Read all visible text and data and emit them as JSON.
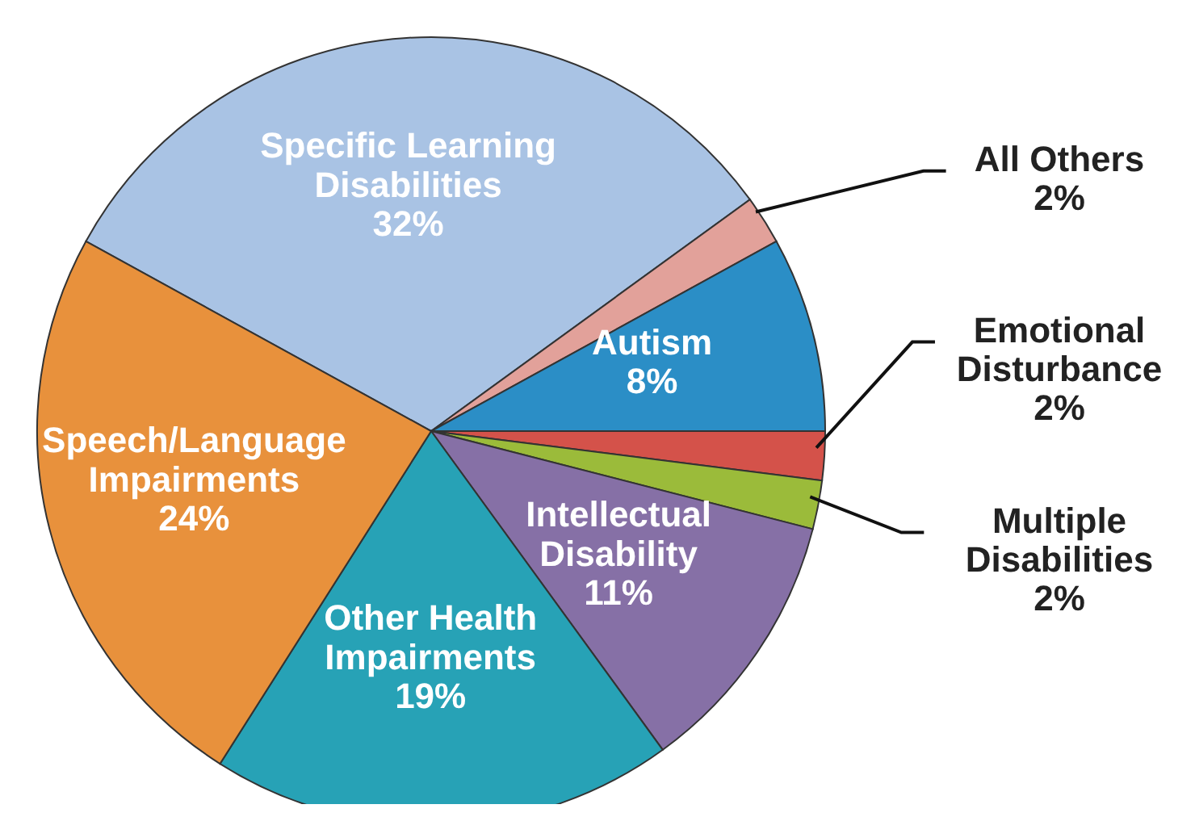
{
  "chart_data": {
    "type": "pie",
    "categories": [
      "Specific Learning Disabilities",
      "All Others",
      "Autism",
      "Emotional Disturbance",
      "Multiple Disabilities",
      "Intellectual Disability",
      "Other Health Impairments",
      "Speech/Language Impairments"
    ],
    "values": [
      32,
      2,
      8,
      2,
      2,
      11,
      19,
      24
    ],
    "colors": [
      "#a9c3e4",
      "#e2a19a",
      "#2b8ec6",
      "#d4524a",
      "#9bbb3a",
      "#8670a6",
      "#27a2b6",
      "#e8913c"
    ],
    "value_labels": [
      "32%",
      "2%",
      "8%",
      "2%",
      "2%",
      "11%",
      "19%",
      "24%"
    ]
  }
}
